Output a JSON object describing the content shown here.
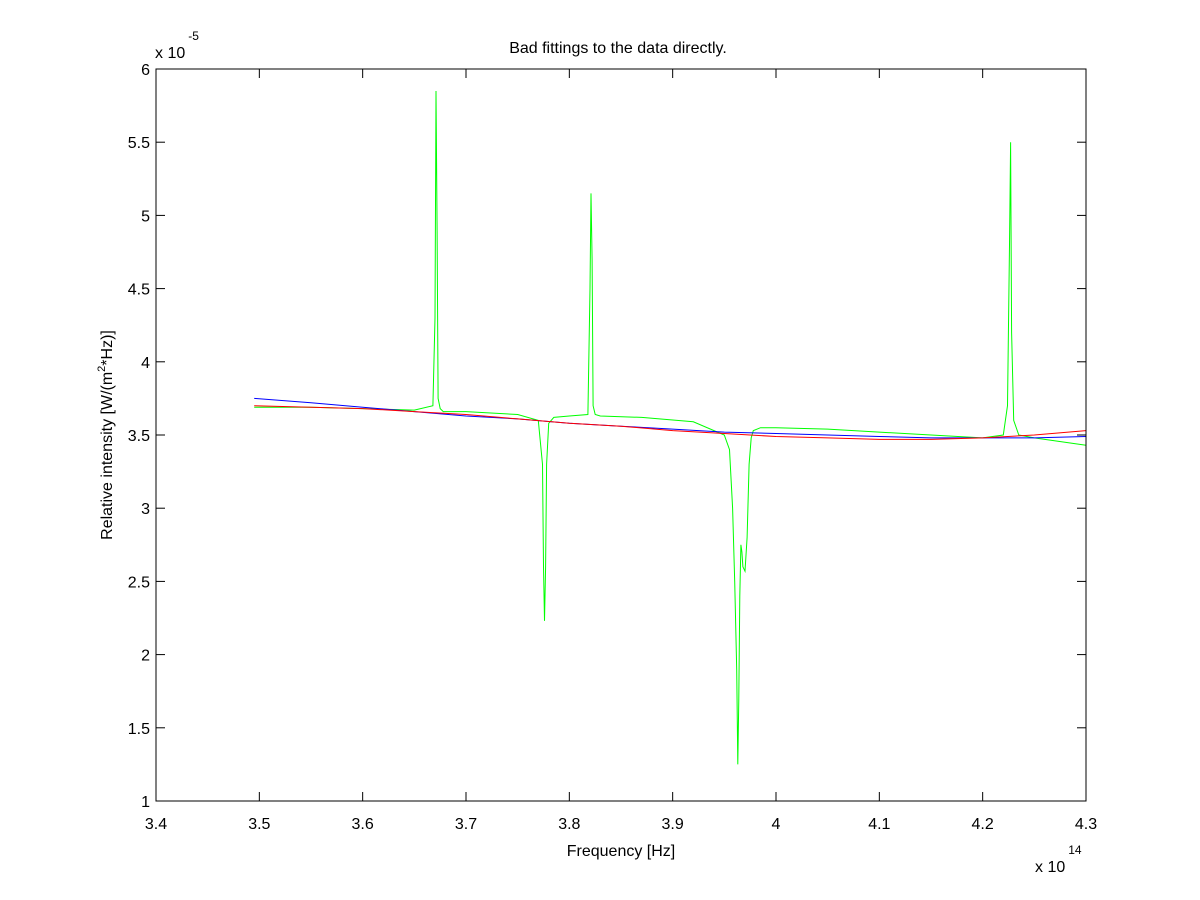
{
  "chart_data": {
    "type": "line",
    "title": "Bad fittings to the data directly.",
    "xlabel": "Frequency [Hz]",
    "ylabel": {
      "before": "Relative intensity [W/(m",
      "sup": "2",
      "after": "*Hz)]"
    },
    "x_exponent": {
      "base": "x 10",
      "power": "14"
    },
    "y_exponent": {
      "base": "x 10",
      "power": "-5"
    },
    "xlim": [
      3.4,
      4.3
    ],
    "ylim": [
      1,
      6
    ],
    "x_ticks": [
      3.4,
      3.5,
      3.6,
      3.7,
      3.8,
      3.9,
      4.0,
      4.1,
      4.2,
      4.3
    ],
    "x_tick_labels": [
      "3.4",
      "3.5",
      "3.6",
      "3.7",
      "3.8",
      "3.9",
      "4",
      "4.1",
      "4.2",
      "4.3"
    ],
    "y_ticks": [
      1,
      1.5,
      2,
      2.5,
      3,
      3.5,
      4,
      4.5,
      5,
      5.5,
      6
    ],
    "y_tick_labels": [
      "1",
      "1.5",
      "2",
      "2.5",
      "3",
      "3.5",
      "4",
      "4.5",
      "5",
      "5.5",
      "6"
    ],
    "grid": false,
    "series": [
      {
        "color": "#00ff00",
        "x": [
          3.495,
          3.55,
          3.6,
          3.65,
          3.668,
          3.67,
          3.671,
          3.672,
          3.673,
          3.675,
          3.678,
          3.7,
          3.75,
          3.77,
          3.774,
          3.775,
          3.776,
          3.777,
          3.778,
          3.78,
          3.785,
          3.8,
          3.818,
          3.82,
          3.821,
          3.822,
          3.823,
          3.825,
          3.83,
          3.87,
          3.92,
          3.95,
          3.955,
          3.958,
          3.96,
          3.962,
          3.963,
          3.964,
          3.965,
          3.966,
          3.967,
          3.968,
          3.97,
          3.972,
          3.974,
          3.976,
          3.978,
          3.985,
          4.0,
          4.05,
          4.1,
          4.15,
          4.2,
          4.22,
          4.224,
          4.226,
          4.227,
          4.228,
          4.23,
          4.235,
          4.25,
          4.3
        ],
        "y": [
          3.69,
          3.69,
          3.68,
          3.67,
          3.7,
          4.3,
          5.85,
          4.9,
          3.75,
          3.68,
          3.66,
          3.66,
          3.64,
          3.6,
          3.3,
          2.6,
          2.23,
          2.6,
          3.3,
          3.58,
          3.62,
          3.63,
          3.64,
          4.5,
          5.15,
          4.7,
          3.7,
          3.64,
          3.63,
          3.62,
          3.59,
          3.5,
          3.4,
          3.0,
          2.5,
          1.9,
          1.25,
          1.7,
          2.4,
          2.75,
          2.7,
          2.6,
          2.57,
          2.8,
          3.3,
          3.48,
          3.53,
          3.55,
          3.55,
          3.54,
          3.52,
          3.5,
          3.48,
          3.5,
          3.7,
          4.8,
          5.5,
          4.2,
          3.6,
          3.5,
          3.48,
          3.43
        ]
      },
      {
        "color": "#0000ff",
        "x": [
          3.495,
          3.55,
          3.6,
          3.65,
          3.7,
          3.75,
          3.8,
          3.85,
          3.9,
          3.95,
          4.0,
          4.05,
          4.1,
          4.15,
          4.2,
          4.25,
          4.3
        ],
        "y": [
          3.75,
          3.72,
          3.69,
          3.66,
          3.63,
          3.61,
          3.58,
          3.56,
          3.54,
          3.52,
          3.51,
          3.5,
          3.49,
          3.48,
          3.48,
          3.48,
          3.49
        ]
      },
      {
        "color": "#ff0000",
        "x": [
          3.495,
          3.55,
          3.6,
          3.65,
          3.7,
          3.75,
          3.8,
          3.85,
          3.9,
          3.95,
          4.0,
          4.05,
          4.1,
          4.15,
          4.2,
          4.25,
          4.3
        ],
        "y": [
          3.7,
          3.69,
          3.68,
          3.66,
          3.64,
          3.61,
          3.58,
          3.56,
          3.53,
          3.51,
          3.49,
          3.48,
          3.47,
          3.47,
          3.48,
          3.5,
          3.53
        ]
      }
    ]
  }
}
